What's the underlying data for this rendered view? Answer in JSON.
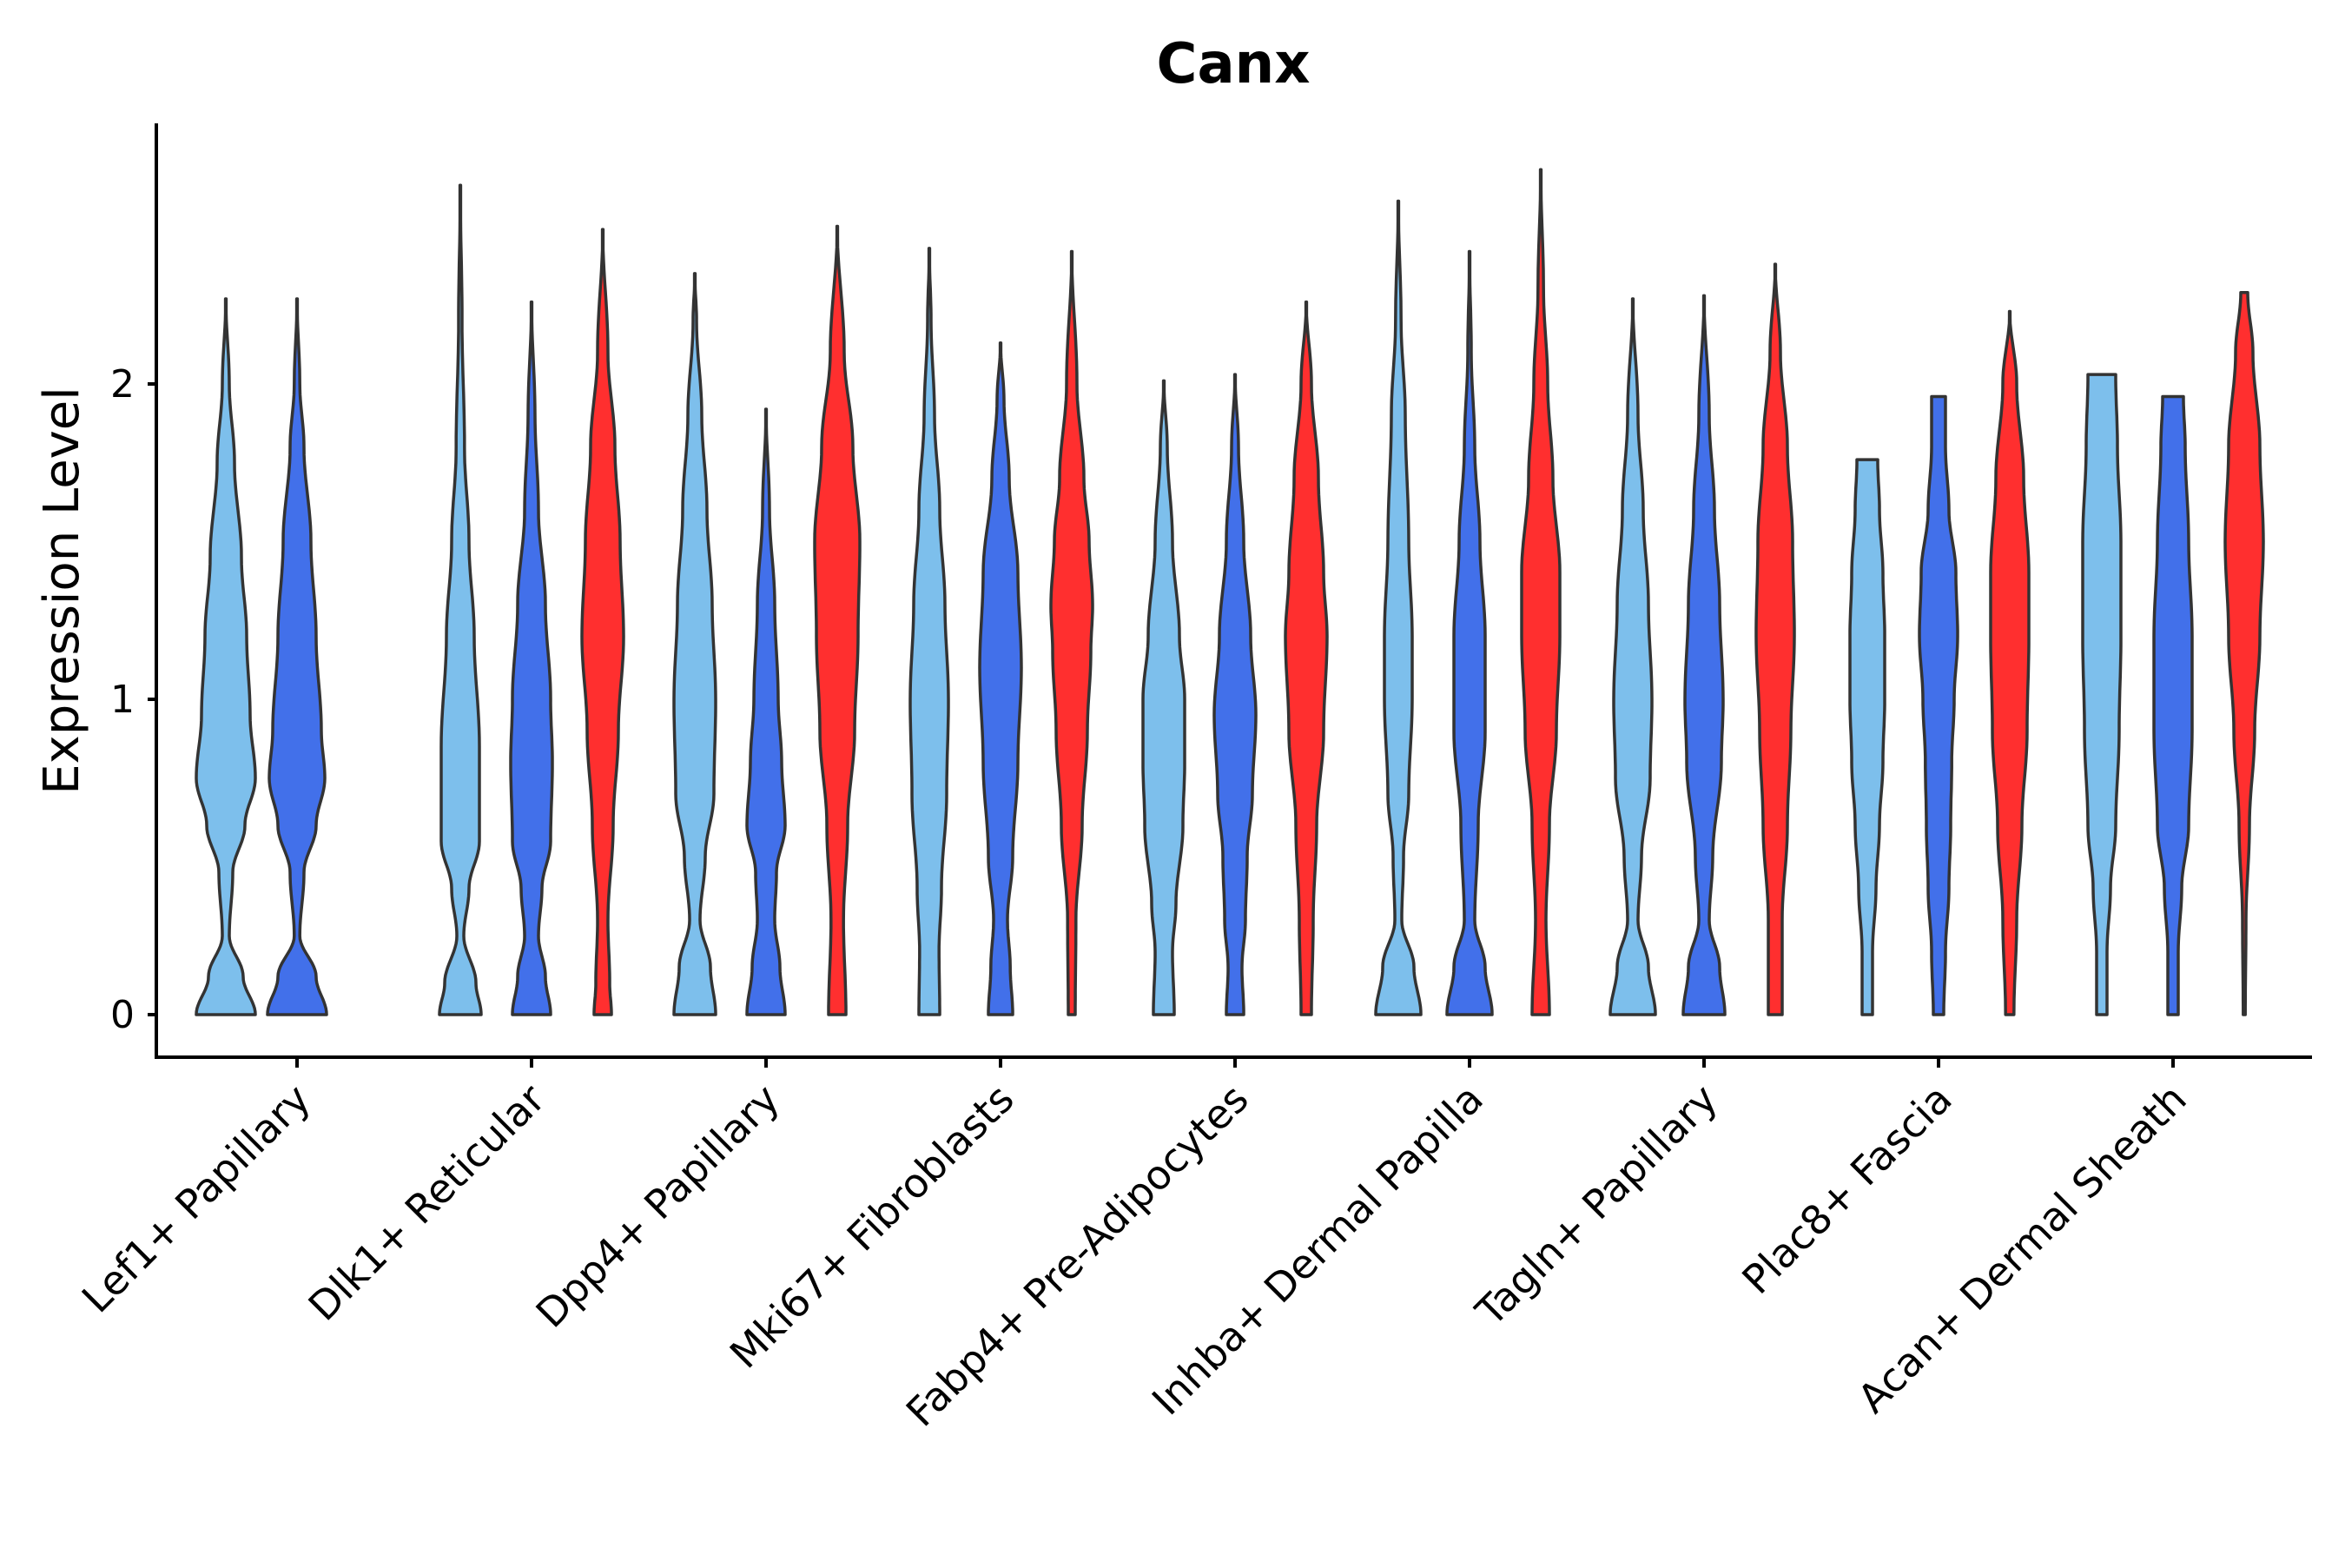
{
  "chart_data": {
    "type": "violin",
    "title": "Canx",
    "xlabel": "",
    "ylabel": "Expression Level",
    "ylim": [
      -0.13,
      2.8
    ],
    "yticks": [
      0,
      1,
      2
    ],
    "categories": [
      "Lef1+ Papillary",
      "Dlk1+ Reticular",
      "Dpp4+ Papillary",
      "Mki67+ Fibroblasts",
      "Fabp4+ Pre-Adipocytes",
      "Inhba+ Dermal Papilla",
      "Tagln+ Papillary",
      "Plac8+ Fascia",
      "Acan+ Dermal Sheath"
    ],
    "series_colors": [
      "#7dbfec",
      "#4270ea",
      "#ff2f2f"
    ],
    "violins": [
      {
        "category": "Lef1+ Papillary",
        "group": 0,
        "max": 2.27,
        "density": [
          [
            0,
            0.85
          ],
          [
            0.12,
            0.5
          ],
          [
            0.25,
            0.1
          ],
          [
            0.45,
            0.2
          ],
          [
            0.6,
            0.55
          ],
          [
            0.75,
            0.85
          ],
          [
            0.95,
            0.7
          ],
          [
            1.2,
            0.6
          ],
          [
            1.45,
            0.45
          ],
          [
            1.75,
            0.25
          ],
          [
            2.0,
            0.1
          ],
          [
            2.27,
            0
          ]
        ]
      },
      {
        "category": "Lef1+ Papillary",
        "group": 1,
        "max": 2.27,
        "density": [
          [
            0,
            0.85
          ],
          [
            0.12,
            0.55
          ],
          [
            0.25,
            0.08
          ],
          [
            0.45,
            0.2
          ],
          [
            0.6,
            0.55
          ],
          [
            0.75,
            0.8
          ],
          [
            0.9,
            0.7
          ],
          [
            1.2,
            0.55
          ],
          [
            1.5,
            0.4
          ],
          [
            1.8,
            0.2
          ],
          [
            2.0,
            0.08
          ],
          [
            2.27,
            0
          ]
        ]
      },
      {
        "category": "Dlk1+ Reticular",
        "group": 0,
        "max": 2.63,
        "density": [
          [
            0,
            0.6
          ],
          [
            0.1,
            0.45
          ],
          [
            0.25,
            0.1
          ],
          [
            0.4,
            0.25
          ],
          [
            0.55,
            0.55
          ],
          [
            0.85,
            0.55
          ],
          [
            1.2,
            0.4
          ],
          [
            1.5,
            0.25
          ],
          [
            1.8,
            0.12
          ],
          [
            2.2,
            0.05
          ],
          [
            2.63,
            0
          ]
        ]
      },
      {
        "category": "Dlk1+ Reticular",
        "group": 1,
        "max": 2.26,
        "density": [
          [
            0,
            0.55
          ],
          [
            0.12,
            0.4
          ],
          [
            0.25,
            0.2
          ],
          [
            0.4,
            0.3
          ],
          [
            0.55,
            0.55
          ],
          [
            0.8,
            0.6
          ],
          [
            1.0,
            0.55
          ],
          [
            1.3,
            0.4
          ],
          [
            1.6,
            0.2
          ],
          [
            1.9,
            0.1
          ],
          [
            2.26,
            0
          ]
        ]
      },
      {
        "category": "Dlk1+ Reticular",
        "group": 2,
        "max": 2.49,
        "density": [
          [
            0,
            0.25
          ],
          [
            0.1,
            0.2
          ],
          [
            0.3,
            0.15
          ],
          [
            0.6,
            0.3
          ],
          [
            0.9,
            0.45
          ],
          [
            1.2,
            0.6
          ],
          [
            1.5,
            0.5
          ],
          [
            1.8,
            0.35
          ],
          [
            2.1,
            0.15
          ],
          [
            2.49,
            0
          ]
        ]
      },
      {
        "category": "Dpp4+ Papillary",
        "group": 0,
        "max": 2.35,
        "density": [
          [
            0,
            0.6
          ],
          [
            0.15,
            0.45
          ],
          [
            0.3,
            0.15
          ],
          [
            0.5,
            0.3
          ],
          [
            0.7,
            0.55
          ],
          [
            1.0,
            0.6
          ],
          [
            1.3,
            0.5
          ],
          [
            1.6,
            0.35
          ],
          [
            1.9,
            0.2
          ],
          [
            2.2,
            0.05
          ],
          [
            2.35,
            0
          ]
        ]
      },
      {
        "category": "Dpp4+ Papillary",
        "group": 1,
        "max": 1.92,
        "density": [
          [
            0,
            0.55
          ],
          [
            0.15,
            0.4
          ],
          [
            0.3,
            0.25
          ],
          [
            0.45,
            0.3
          ],
          [
            0.6,
            0.55
          ],
          [
            0.8,
            0.45
          ],
          [
            1.0,
            0.35
          ],
          [
            1.3,
            0.25
          ],
          [
            1.6,
            0.1
          ],
          [
            1.92,
            0
          ]
        ]
      },
      {
        "category": "Dpp4+ Papillary",
        "group": 2,
        "max": 2.5,
        "density": [
          [
            0,
            0.25
          ],
          [
            0.3,
            0.18
          ],
          [
            0.6,
            0.3
          ],
          [
            0.9,
            0.5
          ],
          [
            1.2,
            0.6
          ],
          [
            1.5,
            0.65
          ],
          [
            1.8,
            0.45
          ],
          [
            2.1,
            0.2
          ],
          [
            2.5,
            0
          ]
        ]
      },
      {
        "category": "Mki67+ Fibroblasts",
        "group": 0,
        "max": 2.43,
        "density": [
          [
            0,
            0.3
          ],
          [
            0.2,
            0.28
          ],
          [
            0.4,
            0.35
          ],
          [
            0.7,
            0.5
          ],
          [
            1.0,
            0.55
          ],
          [
            1.3,
            0.45
          ],
          [
            1.6,
            0.3
          ],
          [
            1.9,
            0.15
          ],
          [
            2.2,
            0.05
          ],
          [
            2.43,
            0
          ]
        ]
      },
      {
        "category": "Mki67+ Fibroblasts",
        "group": 1,
        "max": 2.13,
        "density": [
          [
            0,
            0.35
          ],
          [
            0.15,
            0.28
          ],
          [
            0.3,
            0.2
          ],
          [
            0.5,
            0.35
          ],
          [
            0.8,
            0.5
          ],
          [
            1.1,
            0.6
          ],
          [
            1.4,
            0.5
          ],
          [
            1.7,
            0.25
          ],
          [
            1.95,
            0.1
          ],
          [
            2.13,
            0
          ]
        ]
      },
      {
        "category": "Mki67+ Fibroblasts",
        "group": 2,
        "max": 2.42,
        "density": [
          [
            0,
            0.1
          ],
          [
            0.3,
            0.12
          ],
          [
            0.6,
            0.3
          ],
          [
            0.9,
            0.45
          ],
          [
            1.15,
            0.55
          ],
          [
            1.3,
            0.6
          ],
          [
            1.5,
            0.5
          ],
          [
            1.7,
            0.35
          ],
          [
            2.0,
            0.15
          ],
          [
            2.42,
            0
          ]
        ]
      },
      {
        "category": "Fabp4+ Pre-Adipocytes",
        "group": 0,
        "max": 2.01,
        "density": [
          [
            0,
            0.3
          ],
          [
            0.2,
            0.25
          ],
          [
            0.35,
            0.35
          ],
          [
            0.6,
            0.55
          ],
          [
            0.8,
            0.6
          ],
          [
            1.0,
            0.6
          ],
          [
            1.2,
            0.45
          ],
          [
            1.5,
            0.25
          ],
          [
            1.8,
            0.1
          ],
          [
            2.01,
            0
          ]
        ]
      },
      {
        "category": "Fabp4+ Pre-Adipocytes",
        "group": 1,
        "max": 2.03,
        "density": [
          [
            0,
            0.25
          ],
          [
            0.15,
            0.2
          ],
          [
            0.3,
            0.3
          ],
          [
            0.5,
            0.35
          ],
          [
            0.7,
            0.5
          ],
          [
            0.95,
            0.6
          ],
          [
            1.2,
            0.45
          ],
          [
            1.5,
            0.25
          ],
          [
            1.8,
            0.1
          ],
          [
            2.03,
            0
          ]
        ]
      },
      {
        "category": "Fabp4+ Pre-Adipocytes",
        "group": 2,
        "max": 2.26,
        "density": [
          [
            0,
            0.15
          ],
          [
            0.3,
            0.2
          ],
          [
            0.6,
            0.3
          ],
          [
            0.9,
            0.5
          ],
          [
            1.2,
            0.6
          ],
          [
            1.4,
            0.5
          ],
          [
            1.7,
            0.35
          ],
          [
            2.0,
            0.15
          ],
          [
            2.26,
            0
          ]
        ]
      },
      {
        "category": "Inhba+ Dermal Papilla",
        "group": 0,
        "max": 2.58,
        "density": [
          [
            0,
            0.65
          ],
          [
            0.15,
            0.45
          ],
          [
            0.3,
            0.1
          ],
          [
            0.5,
            0.15
          ],
          [
            0.7,
            0.3
          ],
          [
            1.0,
            0.4
          ],
          [
            1.2,
            0.4
          ],
          [
            1.5,
            0.3
          ],
          [
            1.9,
            0.2
          ],
          [
            2.2,
            0.08
          ],
          [
            2.58,
            0
          ]
        ]
      },
      {
        "category": "Inhba+ Dermal Papilla",
        "group": 1,
        "max": 2.42,
        "density": [
          [
            0,
            0.65
          ],
          [
            0.15,
            0.45
          ],
          [
            0.3,
            0.15
          ],
          [
            0.6,
            0.25
          ],
          [
            0.9,
            0.45
          ],
          [
            1.2,
            0.45
          ],
          [
            1.5,
            0.3
          ],
          [
            1.8,
            0.15
          ],
          [
            2.1,
            0.05
          ],
          [
            2.42,
            0
          ]
        ]
      },
      {
        "category": "Inhba+ Dermal Papilla",
        "group": 2,
        "max": 2.68,
        "density": [
          [
            0,
            0.25
          ],
          [
            0.3,
            0.15
          ],
          [
            0.6,
            0.25
          ],
          [
            0.9,
            0.45
          ],
          [
            1.2,
            0.55
          ],
          [
            1.4,
            0.55
          ],
          [
            1.7,
            0.35
          ],
          [
            2.0,
            0.2
          ],
          [
            2.3,
            0.08
          ],
          [
            2.68,
            0
          ]
        ]
      },
      {
        "category": "Tagln+ Papillary",
        "group": 0,
        "max": 2.27,
        "density": [
          [
            0,
            0.65
          ],
          [
            0.15,
            0.45
          ],
          [
            0.3,
            0.15
          ],
          [
            0.5,
            0.25
          ],
          [
            0.75,
            0.5
          ],
          [
            1.0,
            0.55
          ],
          [
            1.3,
            0.45
          ],
          [
            1.6,
            0.3
          ],
          [
            1.9,
            0.15
          ],
          [
            2.27,
            0
          ]
        ]
      },
      {
        "category": "Tagln+ Papillary",
        "group": 1,
        "max": 2.28,
        "density": [
          [
            0,
            0.6
          ],
          [
            0.15,
            0.45
          ],
          [
            0.3,
            0.15
          ],
          [
            0.5,
            0.25
          ],
          [
            0.8,
            0.5
          ],
          [
            1.0,
            0.55
          ],
          [
            1.3,
            0.45
          ],
          [
            1.6,
            0.3
          ],
          [
            1.9,
            0.15
          ],
          [
            2.28,
            0
          ]
        ]
      },
      {
        "category": "Tagln+ Papillary",
        "group": 2,
        "max": 2.38,
        "density": [
          [
            0,
            0.2
          ],
          [
            0.3,
            0.2
          ],
          [
            0.6,
            0.35
          ],
          [
            0.9,
            0.45
          ],
          [
            1.2,
            0.55
          ],
          [
            1.5,
            0.5
          ],
          [
            1.8,
            0.35
          ],
          [
            2.1,
            0.15
          ],
          [
            2.38,
            0
          ]
        ]
      },
      {
        "category": "Plac8+ Fascia",
        "group": 0,
        "max": 1.76,
        "density": [
          [
            0,
            0.15
          ],
          [
            0.2,
            0.15
          ],
          [
            0.4,
            0.25
          ],
          [
            0.6,
            0.35
          ],
          [
            0.8,
            0.45
          ],
          [
            1.0,
            0.5
          ],
          [
            1.2,
            0.5
          ],
          [
            1.4,
            0.45
          ],
          [
            1.6,
            0.35
          ],
          [
            1.76,
            0.3
          ]
        ]
      },
      {
        "category": "Plac8+ Fascia",
        "group": 1,
        "max": 1.96,
        "density": [
          [
            0,
            0.15
          ],
          [
            0.2,
            0.2
          ],
          [
            0.4,
            0.3
          ],
          [
            0.6,
            0.35
          ],
          [
            0.8,
            0.38
          ],
          [
            1.0,
            0.45
          ],
          [
            1.2,
            0.55
          ],
          [
            1.4,
            0.5
          ],
          [
            1.6,
            0.3
          ],
          [
            1.8,
            0.2
          ],
          [
            1.96,
            0.2
          ]
        ]
      },
      {
        "category": "Plac8+ Fascia",
        "group": 2,
        "max": 2.23,
        "density": [
          [
            0,
            0.12
          ],
          [
            0.3,
            0.2
          ],
          [
            0.6,
            0.35
          ],
          [
            0.9,
            0.5
          ],
          [
            1.2,
            0.55
          ],
          [
            1.4,
            0.55
          ],
          [
            1.7,
            0.4
          ],
          [
            2.0,
            0.2
          ],
          [
            2.23,
            0
          ]
        ]
      },
      {
        "category": "Acan+ Dermal Sheath",
        "group": 0,
        "max": 2.03,
        "density": [
          [
            0,
            0.15
          ],
          [
            0.2,
            0.15
          ],
          [
            0.4,
            0.25
          ],
          [
            0.6,
            0.4
          ],
          [
            0.9,
            0.5
          ],
          [
            1.2,
            0.55
          ],
          [
            1.5,
            0.55
          ],
          [
            1.8,
            0.45
          ],
          [
            2.03,
            0.4
          ]
        ]
      },
      {
        "category": "Acan+ Dermal Sheath",
        "group": 1,
        "max": 1.96,
        "density": [
          [
            0,
            0.15
          ],
          [
            0.2,
            0.15
          ],
          [
            0.4,
            0.25
          ],
          [
            0.6,
            0.45
          ],
          [
            0.9,
            0.55
          ],
          [
            1.2,
            0.55
          ],
          [
            1.5,
            0.45
          ],
          [
            1.8,
            0.35
          ],
          [
            1.96,
            0.3
          ]
        ]
      },
      {
        "category": "Acan+ Dermal Sheath",
        "group": 2,
        "max": 2.29,
        "density": [
          [
            0,
            0.03
          ],
          [
            0.3,
            0.05
          ],
          [
            0.6,
            0.15
          ],
          [
            0.9,
            0.3
          ],
          [
            1.2,
            0.45
          ],
          [
            1.5,
            0.55
          ],
          [
            1.8,
            0.45
          ],
          [
            2.1,
            0.25
          ],
          [
            2.29,
            0.1
          ]
        ]
      }
    ]
  }
}
